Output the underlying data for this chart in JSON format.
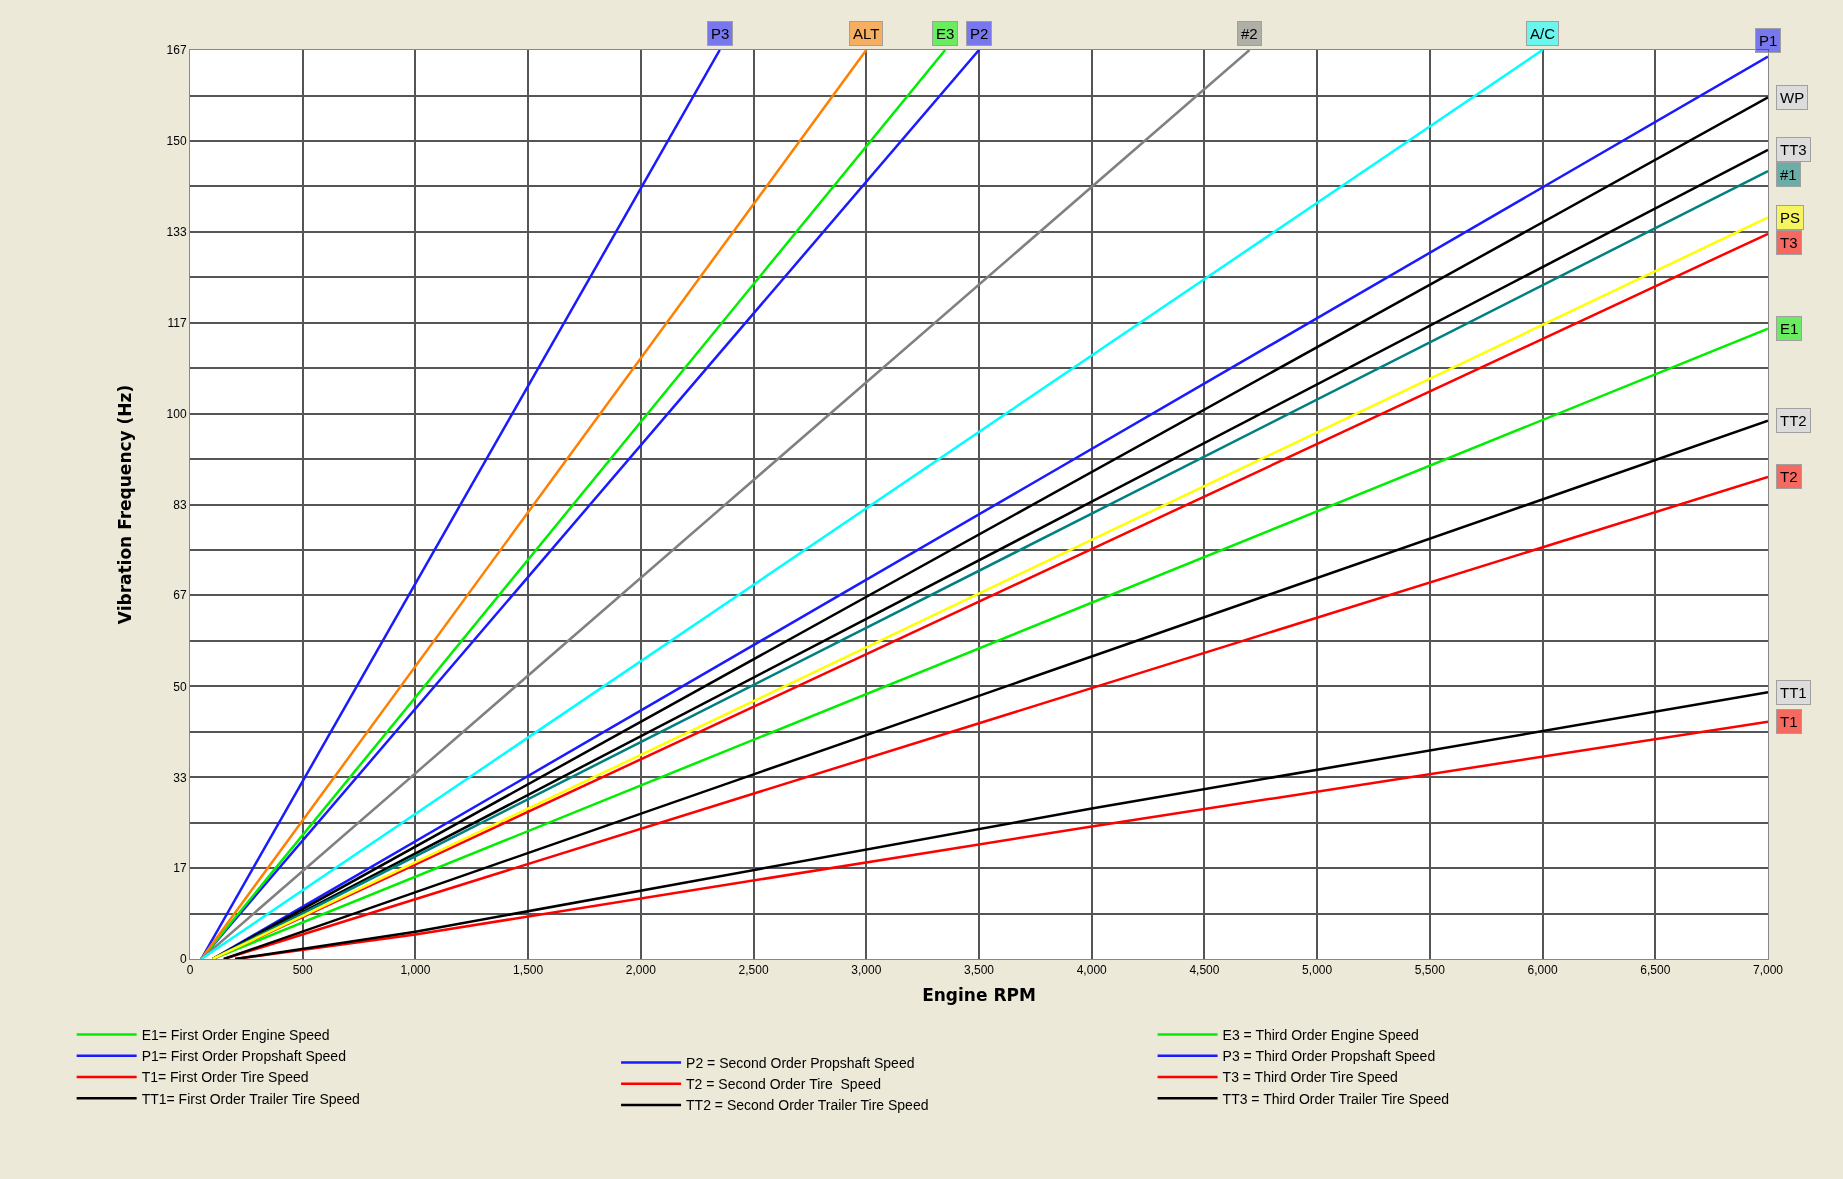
{
  "chart_data": {
    "type": "line",
    "xlabel": "Engine RPM",
    "ylabel": "Vibration Frequency (Hz)",
    "xlim": [
      0,
      7000
    ],
    "xticks": [
      {
        "value": 0,
        "label": "0"
      },
      {
        "value": 500,
        "label": "500"
      },
      {
        "value": 1000,
        "label": "1,000"
      },
      {
        "value": 1500,
        "label": "1,500"
      },
      {
        "value": 2000,
        "label": "2,000"
      },
      {
        "value": 2500,
        "label": "2,500"
      },
      {
        "value": 3000,
        "label": "3,000"
      },
      {
        "value": 3500,
        "label": "3,500"
      },
      {
        "value": 4000,
        "label": "4,000"
      },
      {
        "value": 4500,
        "label": "4,500"
      },
      {
        "value": 5000,
        "label": "5,000"
      },
      {
        "value": 5500,
        "label": "5,500"
      },
      {
        "value": 6000,
        "label": "6,000"
      },
      {
        "value": 6500,
        "label": "6,500"
      },
      {
        "value": 7000,
        "label": "7,000"
      }
    ],
    "ylim": [
      0,
      166.7
    ],
    "yticks": [
      0,
      {
        "value": 8.3,
        "label": null
      },
      {
        "value": 16.7,
        "label": "17"
      },
      {
        "value": 25,
        "label": null
      },
      {
        "value": 33.3,
        "label": "33"
      },
      {
        "value": 41.7,
        "label": null
      },
      50,
      {
        "value": 58.3,
        "label": null
      },
      {
        "value": 66.7,
        "label": "67"
      },
      {
        "value": 75,
        "label": null
      },
      {
        "value": 83.3,
        "label": "83"
      },
      {
        "value": 91.7,
        "label": null
      },
      100,
      {
        "value": 108.3,
        "label": null
      },
      {
        "value": 116.7,
        "label": "117"
      },
      {
        "value": 125,
        "label": null
      },
      {
        "value": 133.3,
        "label": "133"
      },
      {
        "value": 141.7,
        "label": null
      },
      150,
      {
        "value": 158.3,
        "label": null
      },
      {
        "value": 166.7,
        "label": "167"
      }
    ],
    "grid": true,
    "legend": "bottom",
    "line_style": "solid",
    "series": [
      {
        "name": "E1= First Order Engine Speed",
        "color": "#00ee00",
        "x": [
          100,
          7000
        ],
        "values": [
          0,
          115.6
        ]
      },
      {
        "name": "P1= First Order Propshaft Speed",
        "color": "#1a1aff",
        "x": [
          100,
          7000
        ],
        "values": [
          0,
          165.5
        ]
      },
      {
        "name": "T1= First Order Tire Speed",
        "color": "#ff0000",
        "x": [
          200,
          1000,
          4000,
          7000
        ],
        "values": [
          0,
          4.5,
          24.3,
          43.5
        ]
      },
      {
        "name": "TT1= First Order Trailer Tire Speed",
        "color": "#000000",
        "x": [
          200,
          1000,
          4000,
          7000
        ],
        "values": [
          0,
          5,
          27.6,
          48.9
        ]
      },
      {
        "name": "P2 = Second Order Propshaft Speed",
        "color": "#1a1aff",
        "x": [
          50,
          3500
        ],
        "values": [
          0,
          166.7
        ]
      },
      {
        "name": "T2 = Second Order Tire  Speed",
        "color": "#ff0000",
        "x": [
          150,
          7000
        ],
        "values": [
          0,
          88.4
        ]
      },
      {
        "name": "TT2 = Second Order Trailer Tire Speed",
        "color": "#000000",
        "x": [
          150,
          7000
        ],
        "values": [
          0,
          98.7
        ]
      },
      {
        "name": "E3 = Third Order Engine Speed",
        "color": "#00ee00",
        "x": [
          50,
          3350
        ],
        "values": [
          0,
          166.7
        ]
      },
      {
        "name": "P3 = Third Order Propshaft Speed",
        "color": "#1a1aff",
        "x": [
          50,
          2350
        ],
        "values": [
          0,
          166.7
        ]
      },
      {
        "name": "T3 = Third Order Tire Speed",
        "color": "#ff0000",
        "x": [
          100,
          7000
        ],
        "values": [
          0,
          133
        ]
      },
      {
        "name": "TT3 = Third Order Trailer Tire Speed",
        "color": "#000000",
        "x": [
          100,
          7000
        ],
        "values": [
          0,
          148.4
        ]
      },
      {
        "color": "#ff8000",
        "x": [
          50,
          3000
        ],
        "values": [
          0,
          166.7
        ]
      },
      {
        "color": "#808080",
        "x": [
          50,
          4700
        ],
        "values": [
          0,
          166.7
        ]
      },
      {
        "color": "#00ffff",
        "x": [
          50,
          6000
        ],
        "values": [
          0,
          166.7
        ]
      },
      {
        "color": "#000000",
        "x": [
          100,
          7000
        ],
        "values": [
          0,
          158
        ]
      },
      {
        "color": "#008080",
        "x": [
          100,
          7000
        ],
        "values": [
          0,
          144.5
        ]
      },
      {
        "color": "#ffff00",
        "x": [
          100,
          7000
        ],
        "values": [
          0,
          136
        ]
      }
    ],
    "annotations": [
      {
        "text": "P3",
        "x": 2350,
        "y": 166.7
      },
      {
        "text": "ALT",
        "x": 3000,
        "y": 166.7
      },
      {
        "text": "E3",
        "x": 3350,
        "y": 166.7
      },
      {
        "text": "P2",
        "x": 3500,
        "y": 166.7
      },
      {
        "text": "#2",
        "x": 4700,
        "y": 166.7
      },
      {
        "text": "A/C",
        "x": 6000,
        "y": 166.7
      },
      {
        "text": "P1",
        "x": 7000,
        "y": 165.5
      },
      {
        "text": "WP",
        "x": 7000,
        "y": 158
      },
      {
        "text": "TT3",
        "x": 7000,
        "y": 148.4
      },
      {
        "text": "#1",
        "x": 7000,
        "y": 144.5
      },
      {
        "text": "PS",
        "x": 7000,
        "y": 136
      },
      {
        "text": "T3",
        "x": 7000,
        "y": 133
      },
      {
        "text": "E1",
        "x": 7000,
        "y": 115.6
      },
      {
        "text": "TT2",
        "x": 7000,
        "y": 98.7
      },
      {
        "text": "T2",
        "x": 7000,
        "y": 88.4
      },
      {
        "text": "TT1",
        "x": 7000,
        "y": 48.9
      },
      {
        "text": "T1",
        "x": 7000,
        "y": 43.5
      }
    ]
  }
}
